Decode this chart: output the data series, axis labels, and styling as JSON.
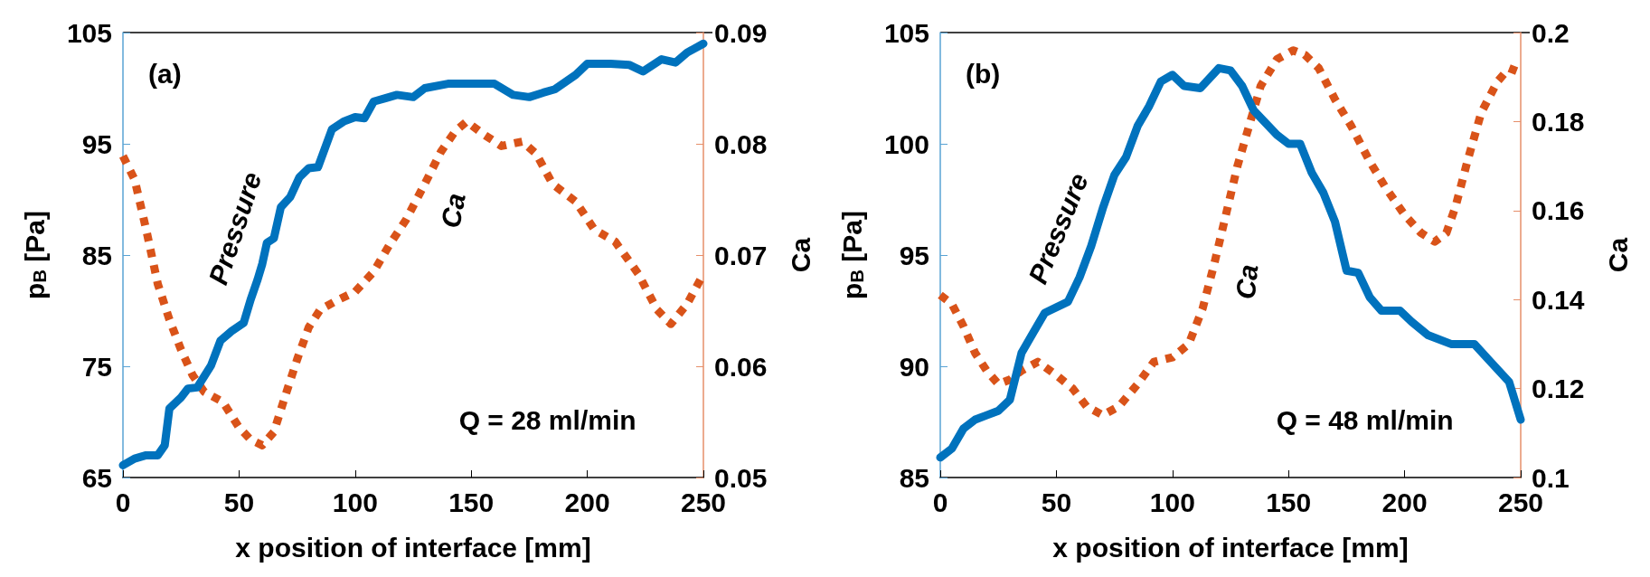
{
  "chart_data": [
    {
      "type": "line",
      "xlabel": "x position of interface [mm]",
      "ylabel": "p$_{B}$ [Pa]",
      "y2label": "Ca",
      "annotations": [
        "(a)",
        "Q = 28 ml/min"
      ],
      "xlim": [
        0,
        250
      ],
      "xticks": [
        0,
        50,
        100,
        150,
        200,
        250
      ],
      "ylim": [
        65,
        105
      ],
      "yticks": [
        65,
        75,
        85,
        95,
        105
      ],
      "y2lim": [
        0.05,
        0.09
      ],
      "y2ticks": [
        0.05,
        0.06,
        0.07,
        0.08,
        0.09
      ],
      "grid": false,
      "legend": false,
      "marker": "none",
      "series": [
        {
          "name": "Pressure",
          "color": "#0072bd",
          "line_style": "solid",
          "x": [
            0,
            5,
            10,
            15,
            18,
            20,
            25,
            28,
            32,
            38,
            42,
            47,
            52,
            55,
            58,
            60,
            62,
            65,
            68,
            72,
            76,
            80,
            84,
            90,
            95,
            100,
            104,
            108,
            113,
            118,
            125,
            130,
            140,
            160,
            168,
            175,
            181,
            186,
            195,
            200,
            210,
            218,
            224,
            232,
            238,
            243,
            250
          ],
          "values": [
            66.1,
            66.7,
            67.0,
            67.0,
            67.9,
            71.2,
            72.2,
            73.0,
            73.1,
            75.1,
            77.3,
            78.2,
            78.9,
            81.0,
            82.8,
            84.2,
            86.1,
            86.5,
            89.3,
            90.2,
            92.0,
            92.8,
            92.9,
            96.3,
            97.0,
            97.4,
            97.3,
            98.8,
            99.1,
            99.4,
            99.2,
            100.0,
            100.4,
            100.4,
            99.4,
            99.2,
            99.6,
            99.9,
            101.2,
            102.2,
            102.2,
            102.1,
            101.5,
            102.6,
            102.3,
            103.2,
            104.0
          ]
        },
        {
          "name": "Ca",
          "color": "#d95319",
          "line_style": "dotted",
          "axis": "y2",
          "x": [
            0,
            5,
            10,
            15,
            20,
            25,
            30,
            35,
            43,
            50,
            55,
            60,
            65,
            70,
            75,
            80,
            85,
            92,
            100,
            108,
            115,
            122,
            130,
            137,
            143,
            148,
            155,
            163,
            172,
            178,
            185,
            195,
            203,
            212,
            222,
            230,
            236,
            243,
            250
          ],
          "values": [
            0.0789,
            0.0768,
            0.0723,
            0.0674,
            0.0642,
            0.0615,
            0.0592,
            0.0577,
            0.0568,
            0.0545,
            0.0534,
            0.0529,
            0.0541,
            0.0574,
            0.0606,
            0.0635,
            0.0651,
            0.0659,
            0.0667,
            0.0685,
            0.071,
            0.0732,
            0.0764,
            0.0793,
            0.0811,
            0.082,
            0.0809,
            0.0798,
            0.0802,
            0.0791,
            0.0764,
            0.0748,
            0.0723,
            0.0712,
            0.0683,
            0.0651,
            0.0638,
            0.0656,
            0.0683
          ]
        }
      ]
    },
    {
      "type": "line",
      "xlabel": "x position of interface [mm]",
      "ylabel": "p$_{B}$ [Pa]",
      "y2label": "Ca",
      "annotations": [
        "(b)",
        "Q = 48 ml/min"
      ],
      "xlim": [
        0,
        250
      ],
      "xticks": [
        0,
        50,
        100,
        150,
        200,
        250
      ],
      "ylim": [
        85,
        105
      ],
      "yticks": [
        85,
        90,
        95,
        100,
        105
      ],
      "y2lim": [
        0.1,
        0.2
      ],
      "y2ticks": [
        0.1,
        0.12,
        0.14,
        0.16,
        0.18,
        0.2
      ],
      "grid": false,
      "legend": false,
      "marker": "none",
      "series": [
        {
          "name": "Pressure",
          "color": "#0072bd",
          "line_style": "solid",
          "x": [
            0,
            5,
            10,
            15,
            20,
            25,
            30,
            35,
            40,
            45,
            55,
            60,
            65,
            70,
            75,
            80,
            85,
            90,
            95,
            100,
            105,
            112,
            120,
            125,
            130,
            135,
            145,
            150,
            155,
            160,
            165,
            170,
            175,
            180,
            185,
            190,
            198,
            203,
            210,
            220,
            230,
            237,
            245,
            250
          ],
          "values": [
            85.9,
            86.3,
            87.2,
            87.6,
            87.8,
            88.0,
            88.5,
            90.6,
            91.5,
            92.4,
            92.9,
            94.0,
            95.4,
            97.1,
            98.6,
            99.4,
            100.8,
            101.7,
            102.8,
            103.1,
            102.6,
            102.5,
            103.4,
            103.3,
            102.6,
            101.5,
            100.4,
            100.0,
            100.0,
            98.7,
            97.8,
            96.5,
            94.3,
            94.2,
            93.1,
            92.5,
            92.5,
            92.0,
            91.4,
            91.0,
            91.0,
            90.2,
            89.3,
            87.6
          ]
        },
        {
          "name": "Ca",
          "color": "#d95319",
          "line_style": "dotted",
          "axis": "y2",
          "x": [
            0,
            5,
            10,
            15,
            20,
            25,
            30,
            35,
            42,
            50,
            57,
            63,
            70,
            77,
            85,
            92,
            100,
            107,
            113,
            118,
            123,
            128,
            133,
            138,
            145,
            152,
            157,
            163,
            170,
            177,
            185,
            192,
            200,
            207,
            213,
            218,
            222,
            227,
            233,
            240,
            245,
            250
          ],
          "values": [
            0.141,
            0.139,
            0.134,
            0.128,
            0.124,
            0.121,
            0.122,
            0.124,
            0.126,
            0.123,
            0.12,
            0.116,
            0.114,
            0.116,
            0.121,
            0.126,
            0.127,
            0.13,
            0.138,
            0.148,
            0.159,
            0.17,
            0.179,
            0.188,
            0.194,
            0.196,
            0.195,
            0.192,
            0.185,
            0.179,
            0.171,
            0.165,
            0.159,
            0.155,
            0.153,
            0.155,
            0.161,
            0.171,
            0.182,
            0.189,
            0.192,
            0.191
          ]
        }
      ]
    }
  ]
}
